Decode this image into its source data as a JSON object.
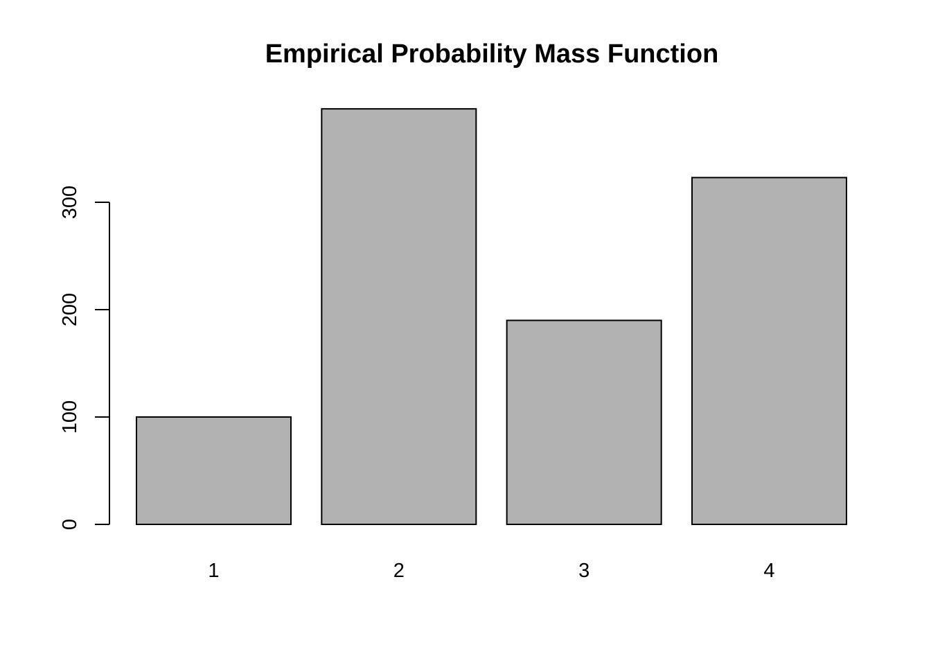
{
  "chart_data": {
    "type": "bar",
    "title": "Empirical Probability Mass Function",
    "categories": [
      "1",
      "2",
      "3",
      "4"
    ],
    "values": [
      100,
      387,
      190,
      323
    ],
    "xlabel": "",
    "ylabel": "",
    "y_ticks": [
      0,
      100,
      200,
      300
    ],
    "ylim": [
      0,
      387
    ],
    "grid": false,
    "bar_fill_color": "#b2b2b2",
    "bar_stroke_color": "#000000",
    "axis_color": "#000000",
    "text_color": "#000000",
    "background_color": "#ffffff"
  }
}
